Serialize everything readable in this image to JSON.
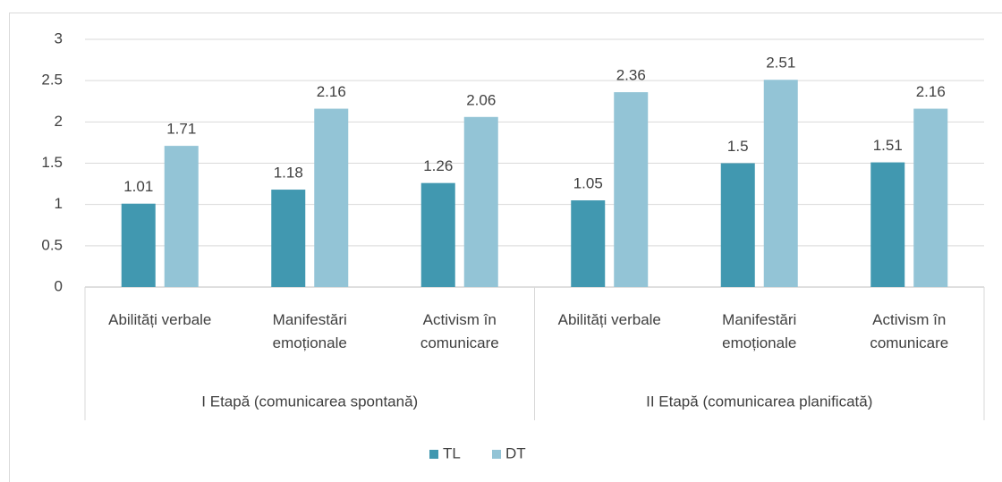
{
  "chart_data": {
    "type": "bar",
    "categories": [
      "Abilități verbale",
      "Manifestări emoționale",
      "Activism în comunicare",
      "Abilități verbale",
      "Manifestări emoționale",
      "Activism în comunicare"
    ],
    "groups": [
      "I Etapă (comunicarea spontană)",
      "II Etapă (comunicarea planificată)"
    ],
    "series": [
      {
        "name": "TL",
        "color": "#4198b0",
        "values": [
          1.01,
          1.18,
          1.26,
          1.05,
          1.5,
          1.51
        ]
      },
      {
        "name": "DT",
        "color": "#93c4d6",
        "values": [
          1.71,
          2.16,
          2.06,
          2.36,
          2.51,
          2.16
        ]
      }
    ],
    "ylim": [
      0,
      3
    ],
    "yticks": [
      0,
      0.5,
      1,
      1.5,
      2,
      2.5,
      3
    ],
    "grid": true,
    "legend": "bottom"
  }
}
